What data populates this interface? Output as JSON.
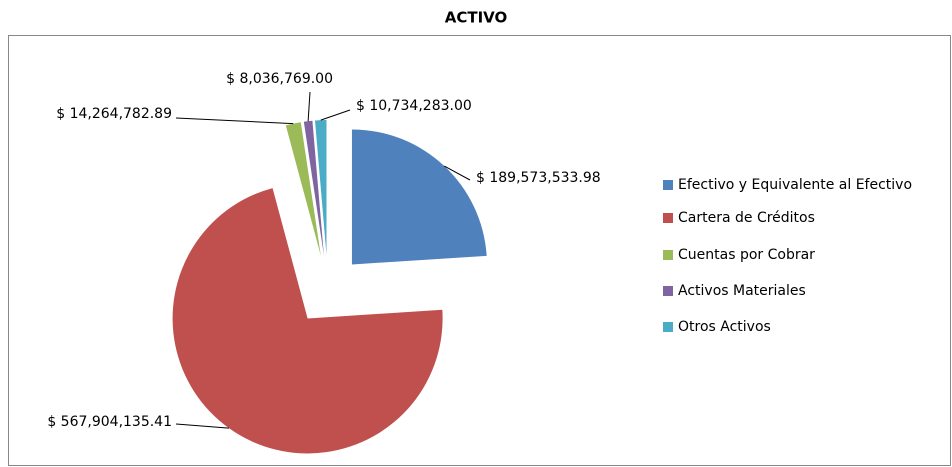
{
  "chart_data": {
    "type": "pie",
    "title": "ACTIVO",
    "categories": [
      "Efectivo y Equivalente al Efectivo",
      "Cartera de Créditos",
      "Cuentas por Cobrar",
      "Activos Materiales",
      "Otros Activos"
    ],
    "values": [
      189573533.98,
      567904135.41,
      14264782.89,
      8036769.0,
      10734283.0
    ],
    "value_labels": [
      "$ 189,573,533.98",
      "$ 567,904,135.41",
      "$ 14,264,782.89",
      "$ 8,036,769.00",
      "$ 10,734,283.00"
    ],
    "colors": [
      "#4f81bd",
      "#c0504d",
      "#9bbb59",
      "#8064a2",
      "#4bacc6"
    ],
    "legend": "right"
  }
}
